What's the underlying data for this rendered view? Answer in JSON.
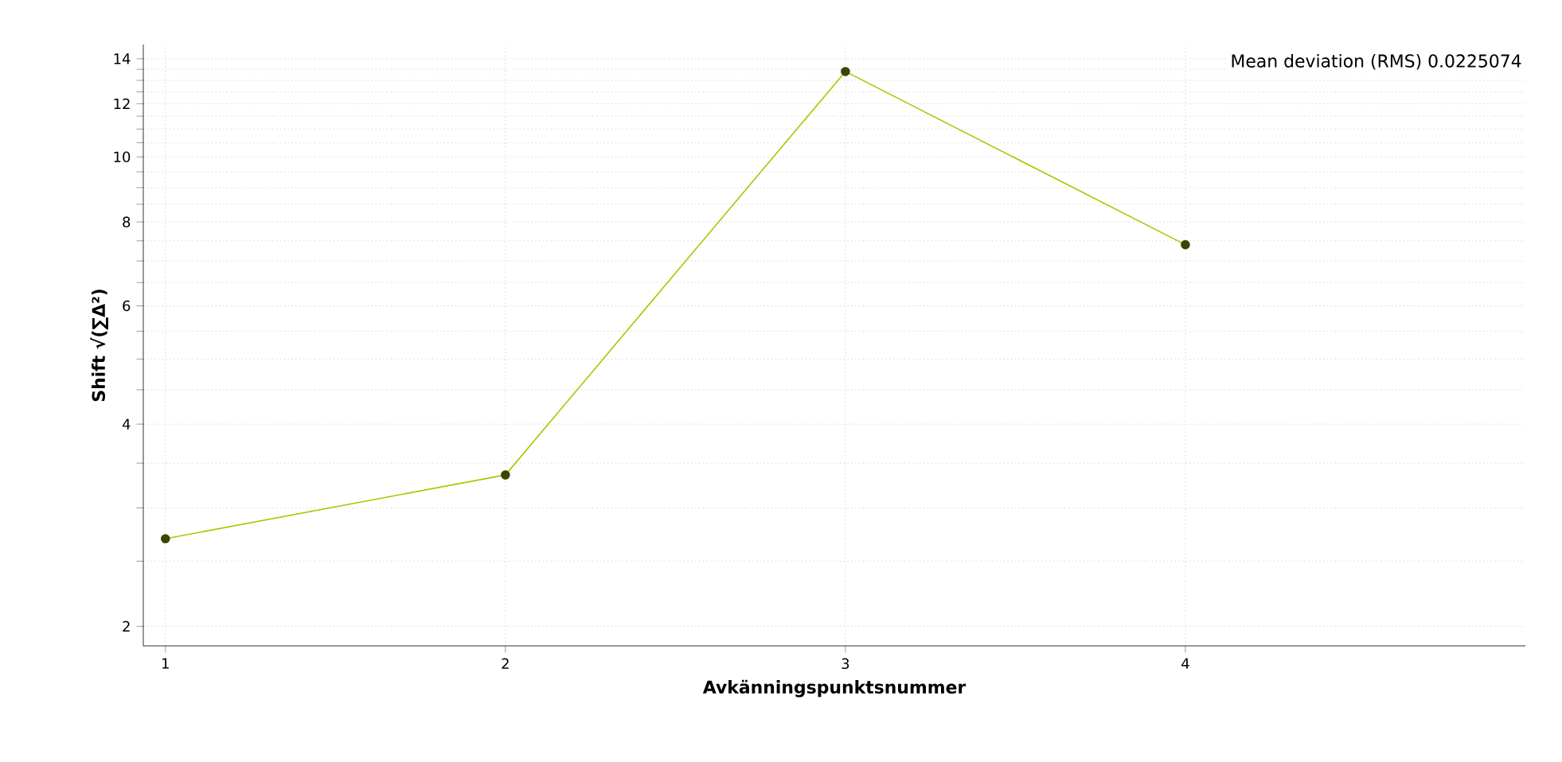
{
  "chart_data": {
    "type": "line",
    "xlabel": "Avkänningspunktsnummer",
    "ylabel": "Shift √(∑Δ²)",
    "annotations": [
      "Mean deviation (RMS) 0.0225074"
    ],
    "x": [
      1,
      2,
      3,
      4
    ],
    "series": [
      {
        "color": "#a8c800",
        "values": [
          2.7,
          3.36,
          13.4,
          7.4
        ]
      }
    ],
    "log": "y",
    "grid": true,
    "marker": "circle",
    "line_style": "solid",
    "xlim": [
      0.935,
      5
    ],
    "xticks": [
      1,
      2,
      3,
      4
    ],
    "ylim": [
      1.87,
      14.7
    ],
    "yticks": [
      2,
      {
        "value": 2.5,
        "label": null
      },
      {
        "value": 3,
        "label": null
      },
      {
        "value": 3.5,
        "label": null
      },
      4,
      {
        "value": 4.5,
        "label": null
      },
      {
        "value": 5,
        "label": null
      },
      {
        "value": 5.5,
        "label": null
      },
      6,
      {
        "value": 6.5,
        "label": null
      },
      {
        "value": 7,
        "label": null
      },
      {
        "value": 7.5,
        "label": null
      },
      8,
      {
        "value": 8.5,
        "label": null
      },
      {
        "value": 9,
        "label": null
      },
      {
        "value": 9.5,
        "label": null
      },
      10,
      {
        "value": 10.5,
        "label": null
      },
      {
        "value": 11,
        "label": null
      },
      {
        "value": 11.5,
        "label": null
      },
      12,
      {
        "value": 12.5,
        "label": null
      },
      {
        "value": 13,
        "label": null
      },
      {
        "value": 13.5,
        "label": null
      },
      14
    ]
  }
}
